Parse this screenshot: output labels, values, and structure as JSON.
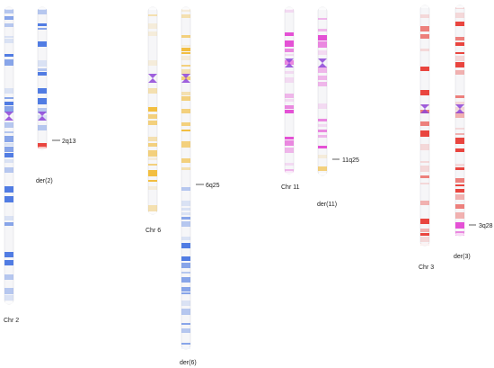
{
  "colors": {
    "chr2": "#3f6fe0",
    "chr6": "#f2b82c",
    "chr11": "#e23fd0",
    "chr3": "#e8322a",
    "centromere": "#8e45d8",
    "pointer": "#333333"
  },
  "labels": {
    "chr2": "Chr 2",
    "der2": "der(2)",
    "chr6": "Chr 6",
    "der6": "der(6)",
    "chr11": "Chr 11",
    "der11": "der(11)",
    "chr3": "Chr 3",
    "der3": "der(3)"
  },
  "breakpoints": {
    "bp2": "2q13",
    "bp6": "6q25",
    "bp11": "11q25",
    "bp3": "3q28"
  }
}
